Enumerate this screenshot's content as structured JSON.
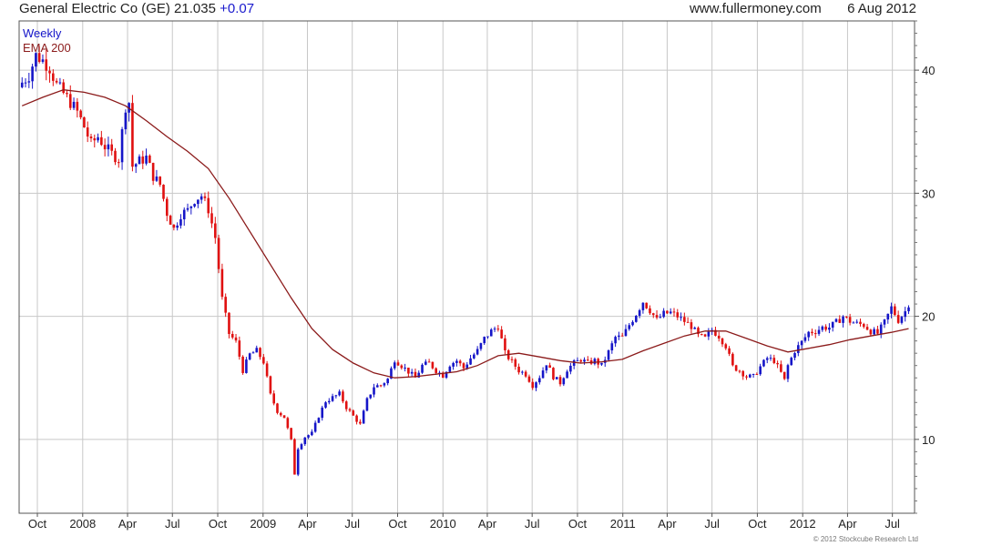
{
  "header": {
    "title": "General Electric Co (GE) 21.035",
    "change": "+0.07",
    "website": "www.fullermoney.com",
    "date": "6 Aug 2012"
  },
  "copyright": "© 2012 Stockcube Research Ltd",
  "colors": {
    "up": "#1515c8",
    "down": "#e01010",
    "ema": "#8b1a1a",
    "grid": "#c8c8c8"
  },
  "chart_data": {
    "type": "candlestick",
    "title": "General Electric Co (GE)",
    "legend": [
      {
        "label": "Weekly",
        "color": "#1515c8"
      },
      {
        "label": "EMA 200",
        "color": "#8b1a1a"
      }
    ],
    "legend_position": "top-left",
    "grid": true,
    "y_axis": {
      "position": "right",
      "ticks": [
        10,
        20,
        30,
        40
      ],
      "ylim": [
        4.0,
        44.0
      ]
    },
    "x_axis": {
      "ticks": [
        {
          "label": "Oct",
          "date": "2007-10-01"
        },
        {
          "label": "2008",
          "date": "2008-01-01"
        },
        {
          "label": "Apr",
          "date": "2008-04-01"
        },
        {
          "label": "Jul",
          "date": "2008-07-01"
        },
        {
          "label": "Oct",
          "date": "2008-10-01"
        },
        {
          "label": "2009",
          "date": "2009-01-01"
        },
        {
          "label": "Apr",
          "date": "2009-04-01"
        },
        {
          "label": "Jul",
          "date": "2009-07-01"
        },
        {
          "label": "Oct",
          "date": "2009-10-01"
        },
        {
          "label": "2010",
          "date": "2010-01-01"
        },
        {
          "label": "Apr",
          "date": "2010-04-01"
        },
        {
          "label": "Jul",
          "date": "2010-07-01"
        },
        {
          "label": "Oct",
          "date": "2010-10-01"
        },
        {
          "label": "2011",
          "date": "2011-01-01"
        },
        {
          "label": "Apr",
          "date": "2011-04-01"
        },
        {
          "label": "Jul",
          "date": "2011-07-01"
        },
        {
          "label": "Oct",
          "date": "2011-10-01"
        },
        {
          "label": "2012",
          "date": "2012-01-01"
        },
        {
          "label": "Apr",
          "date": "2012-04-01"
        },
        {
          "label": "Jul",
          "date": "2012-07-01"
        }
      ],
      "range": [
        "2007-08-25",
        "2012-08-15"
      ]
    },
    "series": [
      {
        "name": "Weekly",
        "kind": "close_path",
        "points": [
          [
            "2007-08-31",
            39.0
          ],
          [
            "2007-09-14",
            39.6
          ],
          [
            "2007-09-28",
            41.2
          ],
          [
            "2007-10-12",
            40.8
          ],
          [
            "2007-10-26",
            40.2
          ],
          [
            "2007-11-09",
            38.8
          ],
          [
            "2007-11-23",
            38.1
          ],
          [
            "2007-12-07",
            37.4
          ],
          [
            "2007-12-21",
            36.6
          ],
          [
            "2008-01-04",
            35.4
          ],
          [
            "2008-01-18",
            34.0
          ],
          [
            "2008-02-01",
            34.6
          ],
          [
            "2008-02-15",
            33.8
          ],
          [
            "2008-02-29",
            33.2
          ],
          [
            "2008-03-14",
            32.8
          ],
          [
            "2008-03-28",
            37.1
          ],
          [
            "2008-04-04",
            37.4
          ],
          [
            "2008-04-11",
            32.2
          ],
          [
            "2008-04-25",
            32.6
          ],
          [
            "2008-05-09",
            32.9
          ],
          [
            "2008-05-23",
            31.4
          ],
          [
            "2008-06-06",
            30.7
          ],
          [
            "2008-06-20",
            28.4
          ],
          [
            "2008-07-04",
            27.1
          ],
          [
            "2008-07-18",
            28.3
          ],
          [
            "2008-08-01",
            28.6
          ],
          [
            "2008-08-15",
            29.5
          ],
          [
            "2008-08-29",
            29.8
          ],
          [
            "2008-09-12",
            28.7
          ],
          [
            "2008-09-26",
            26.4
          ],
          [
            "2008-10-10",
            21.4
          ],
          [
            "2008-10-24",
            18.6
          ],
          [
            "2008-11-07",
            17.9
          ],
          [
            "2008-11-21",
            15.6
          ],
          [
            "2008-12-05",
            16.9
          ],
          [
            "2008-12-19",
            17.2
          ],
          [
            "2009-01-02",
            16.3
          ],
          [
            "2009-01-16",
            13.6
          ],
          [
            "2009-01-30",
            12.3
          ],
          [
            "2009-02-13",
            11.8
          ],
          [
            "2009-02-27",
            9.9
          ],
          [
            "2009-03-06",
            7.2
          ],
          [
            "2009-03-13",
            9.3
          ],
          [
            "2009-03-27",
            10.2
          ],
          [
            "2009-04-10",
            10.5
          ],
          [
            "2009-04-24",
            11.9
          ],
          [
            "2009-05-08",
            13.1
          ],
          [
            "2009-05-22",
            13.4
          ],
          [
            "2009-06-05",
            13.7
          ],
          [
            "2009-06-19",
            12.6
          ],
          [
            "2009-07-03",
            11.9
          ],
          [
            "2009-07-17",
            11.2
          ],
          [
            "2009-07-31",
            13.2
          ],
          [
            "2009-08-14",
            14.3
          ],
          [
            "2009-08-28",
            14.4
          ],
          [
            "2009-09-11",
            14.9
          ],
          [
            "2009-09-25",
            16.5
          ],
          [
            "2009-10-09",
            16.0
          ],
          [
            "2009-10-23",
            15.5
          ],
          [
            "2009-11-06",
            15.0
          ],
          [
            "2009-11-20",
            16.0
          ],
          [
            "2009-12-04",
            16.2
          ],
          [
            "2009-12-18",
            15.6
          ],
          [
            "2010-01-01",
            15.2
          ],
          [
            "2010-01-15",
            16.1
          ],
          [
            "2010-01-29",
            16.4
          ],
          [
            "2010-02-12",
            15.8
          ],
          [
            "2010-02-26",
            16.6
          ],
          [
            "2010-03-12",
            17.2
          ],
          [
            "2010-03-26",
            18.2
          ],
          [
            "2010-04-09",
            18.8
          ],
          [
            "2010-04-23",
            19.2
          ],
          [
            "2010-05-07",
            17.0
          ],
          [
            "2010-05-21",
            16.3
          ],
          [
            "2010-06-04",
            15.6
          ],
          [
            "2010-06-18",
            15.3
          ],
          [
            "2010-07-02",
            14.4
          ],
          [
            "2010-07-16",
            15.1
          ],
          [
            "2010-07-30",
            16.2
          ],
          [
            "2010-08-13",
            15.1
          ],
          [
            "2010-08-27",
            14.6
          ],
          [
            "2010-09-10",
            15.7
          ],
          [
            "2010-09-24",
            16.2
          ],
          [
            "2010-10-08",
            16.5
          ],
          [
            "2010-10-22",
            16.2
          ],
          [
            "2010-11-05",
            16.4
          ],
          [
            "2010-11-19",
            16.0
          ],
          [
            "2010-12-03",
            17.1
          ],
          [
            "2010-12-17",
            18.3
          ],
          [
            "2010-12-31",
            18.3
          ],
          [
            "2011-01-14",
            19.3
          ],
          [
            "2011-01-28",
            20.2
          ],
          [
            "2011-02-11",
            21.2
          ],
          [
            "2011-02-25",
            20.5
          ],
          [
            "2011-03-11",
            19.7
          ],
          [
            "2011-03-25",
            20.2
          ],
          [
            "2011-04-08",
            20.3
          ],
          [
            "2011-04-22",
            20.0
          ],
          [
            "2011-05-06",
            19.6
          ],
          [
            "2011-05-20",
            19.2
          ],
          [
            "2011-06-03",
            18.4
          ],
          [
            "2011-06-17",
            18.2
          ],
          [
            "2011-07-01",
            18.9
          ],
          [
            "2011-07-15",
            18.4
          ],
          [
            "2011-07-29",
            17.6
          ],
          [
            "2011-08-12",
            15.9
          ],
          [
            "2011-08-26",
            15.6
          ],
          [
            "2011-09-09",
            15.1
          ],
          [
            "2011-09-23",
            15.1
          ],
          [
            "2011-10-07",
            15.9
          ],
          [
            "2011-10-21",
            16.6
          ],
          [
            "2011-11-04",
            16.4
          ],
          [
            "2011-11-18",
            15.4
          ],
          [
            "2011-11-25",
            14.8
          ],
          [
            "2011-12-02",
            16.0
          ],
          [
            "2011-12-16",
            17.2
          ],
          [
            "2011-12-30",
            17.9
          ],
          [
            "2012-01-13",
            18.7
          ],
          [
            "2012-01-27",
            18.8
          ],
          [
            "2012-02-10",
            19.1
          ],
          [
            "2012-02-24",
            19.1
          ],
          [
            "2012-03-09",
            19.5
          ],
          [
            "2012-03-23",
            20.0
          ],
          [
            "2012-04-06",
            19.6
          ],
          [
            "2012-04-20",
            19.4
          ],
          [
            "2012-05-04",
            19.3
          ],
          [
            "2012-05-18",
            18.8
          ],
          [
            "2012-06-01",
            18.6
          ],
          [
            "2012-06-15",
            19.5
          ],
          [
            "2012-06-29",
            20.7
          ],
          [
            "2012-07-13",
            19.7
          ],
          [
            "2012-07-27",
            20.4
          ],
          [
            "2012-08-03",
            21.035
          ]
        ]
      },
      {
        "name": "EMA 200",
        "kind": "line",
        "points": [
          [
            "2007-08-31",
            37.1
          ],
          [
            "2007-10-12",
            37.8
          ],
          [
            "2007-11-23",
            38.4
          ],
          [
            "2008-01-04",
            38.2
          ],
          [
            "2008-02-15",
            37.8
          ],
          [
            "2008-03-28",
            37.1
          ],
          [
            "2008-05-09",
            35.9
          ],
          [
            "2008-06-20",
            34.6
          ],
          [
            "2008-08-01",
            33.4
          ],
          [
            "2008-09-12",
            32.0
          ],
          [
            "2008-10-24",
            29.6
          ],
          [
            "2008-12-05",
            26.9
          ],
          [
            "2009-01-16",
            24.2
          ],
          [
            "2009-02-27",
            21.5
          ],
          [
            "2009-04-10",
            19.0
          ],
          [
            "2009-05-22",
            17.3
          ],
          [
            "2009-07-03",
            16.2
          ],
          [
            "2009-08-14",
            15.4
          ],
          [
            "2009-09-25",
            15.0
          ],
          [
            "2009-11-06",
            15.1
          ],
          [
            "2009-12-18",
            15.3
          ],
          [
            "2010-01-29",
            15.5
          ],
          [
            "2010-03-12",
            16.0
          ],
          [
            "2010-04-23",
            16.8
          ],
          [
            "2010-06-04",
            17.0
          ],
          [
            "2010-07-16",
            16.7
          ],
          [
            "2010-08-27",
            16.4
          ],
          [
            "2010-10-08",
            16.2
          ],
          [
            "2010-11-19",
            16.3
          ],
          [
            "2010-12-31",
            16.5
          ],
          [
            "2011-02-11",
            17.2
          ],
          [
            "2011-03-25",
            17.8
          ],
          [
            "2011-05-06",
            18.4
          ],
          [
            "2011-06-17",
            18.8
          ],
          [
            "2011-07-29",
            18.8
          ],
          [
            "2011-09-09",
            18.2
          ],
          [
            "2011-10-21",
            17.6
          ],
          [
            "2011-12-02",
            17.1
          ],
          [
            "2012-01-13",
            17.4
          ],
          [
            "2012-02-24",
            17.7
          ],
          [
            "2012-04-06",
            18.1
          ],
          [
            "2012-05-18",
            18.4
          ],
          [
            "2012-06-29",
            18.7
          ],
          [
            "2012-08-03",
            19.0
          ]
        ]
      }
    ]
  }
}
